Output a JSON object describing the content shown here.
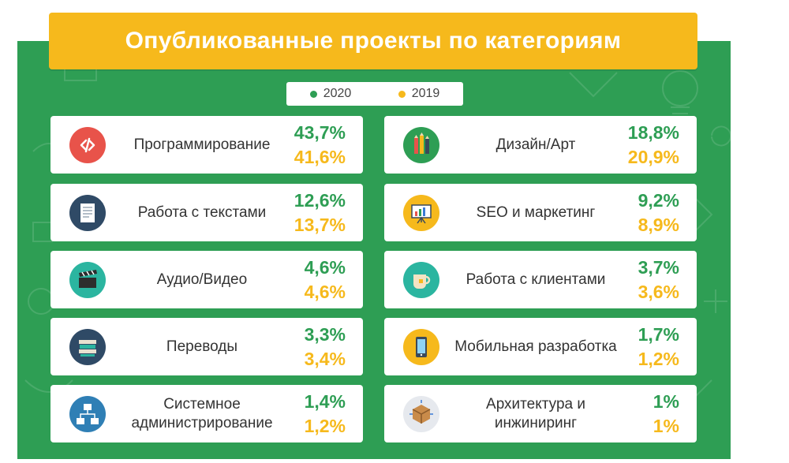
{
  "title": "Опубликованные проекты по категориям",
  "colors": {
    "green": "#2e9e54",
    "yellow": "#f6b91c"
  },
  "legend": [
    {
      "label": "2020",
      "color": "#2e9e54"
    },
    {
      "label": "2019",
      "color": "#f6b91c"
    }
  ],
  "categories": [
    {
      "name": "Программирование",
      "icon": "code-icon",
      "v2020": "43,7%",
      "v2019": "41,6%"
    },
    {
      "name": "Дизайн/Арт",
      "icon": "pencils-icon",
      "v2020": "18,8%",
      "v2019": "20,9%"
    },
    {
      "name": "Работа с текстами",
      "icon": "document-icon",
      "v2020": "12,6%",
      "v2019": "13,7%"
    },
    {
      "name": "SEO и маркетинг",
      "icon": "presentation-chart-icon",
      "v2020": "9,2%",
      "v2019": "8,9%"
    },
    {
      "name": "Аудио/Видео",
      "icon": "clapperboard-icon",
      "v2020": "4,6%",
      "v2019": "4,6%"
    },
    {
      "name": "Работа с клиентами",
      "icon": "coffee-cup-icon",
      "v2020": "3,7%",
      "v2019": "3,6%"
    },
    {
      "name": "Переводы",
      "icon": "books-icon",
      "v2020": "3,3%",
      "v2019": "3,4%"
    },
    {
      "name": "Мобильная разработка",
      "icon": "mobile-phone-icon",
      "v2020": "1,7%",
      "v2019": "1,2%"
    },
    {
      "name": "Системное администрирование",
      "icon": "network-icon",
      "v2020": "1,4%",
      "v2019": "1,2%"
    },
    {
      "name": "Архитектура и инжиниринг",
      "icon": "box-3d-icon",
      "v2020": "1%",
      "v2019": "1%"
    }
  ],
  "chart_data": {
    "type": "table",
    "title": "Опубликованные проекты по категориям",
    "columns": [
      "2020",
      "2019"
    ],
    "categories": [
      "Программирование",
      "Дизайн/Арт",
      "Работа с текстами",
      "SEO и маркетинг",
      "Аудио/Видео",
      "Работа с клиентами",
      "Переводы",
      "Мобильная разработка",
      "Системное администрирование",
      "Архитектура и инжиниринг"
    ],
    "series": [
      {
        "name": "2020",
        "values": [
          43.7,
          18.8,
          12.6,
          9.2,
          4.6,
          3.7,
          3.3,
          1.7,
          1.4,
          1
        ]
      },
      {
        "name": "2019",
        "values": [
          41.6,
          20.9,
          13.7,
          8.9,
          4.6,
          3.6,
          3.4,
          1.2,
          1.2,
          1
        ]
      }
    ],
    "unit": "%"
  }
}
